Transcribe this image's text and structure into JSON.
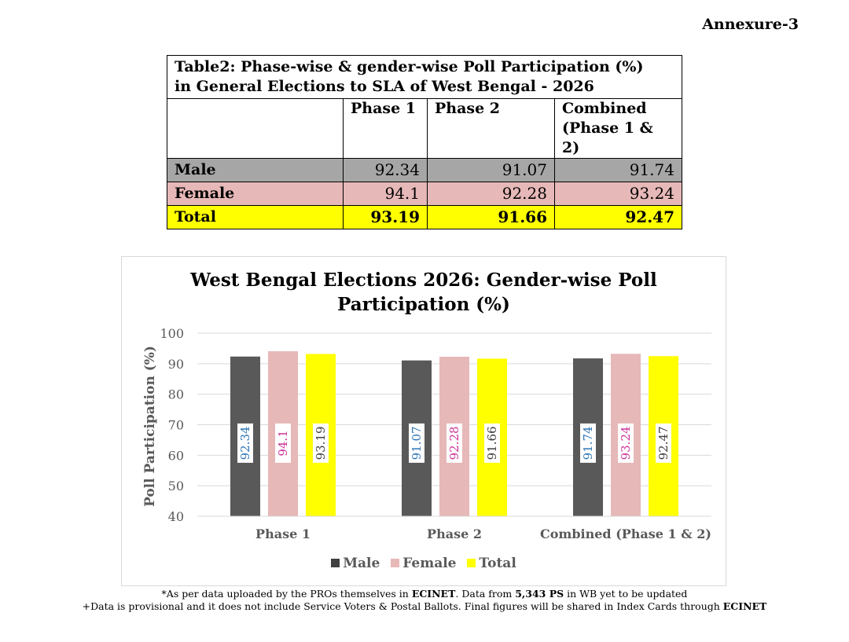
{
  "annexure": "Annexure-3",
  "table": {
    "caption_line1": "Table2: Phase-wise & gender-wise Poll Participation (%)",
    "caption_line2": "in General Elections to SLA of West Bengal - 2026",
    "headers": [
      "",
      "Phase 1",
      "Phase 2",
      "Combined (Phase 1 & 2)"
    ],
    "rows": [
      {
        "label": "Male",
        "values": [
          "92.34",
          "91.07",
          "91.74"
        ]
      },
      {
        "label": "Female",
        "values": [
          "94.1",
          "92.28",
          "93.24"
        ]
      },
      {
        "label": "Total",
        "values": [
          "93.19",
          "91.66",
          "92.47"
        ]
      }
    ],
    "row_colors": {
      "male": "#a6a6a6",
      "female": "#e6b8b7",
      "total": "#ffff00"
    }
  },
  "chart_data": {
    "type": "bar",
    "title_line1": "West Bengal Elections 2026: Gender-wise Poll",
    "title_line2": "Participation (%)",
    "ylabel": "Poll Participation (%)",
    "xlabel": "",
    "categories": [
      "Phase 1",
      "Phase 2",
      "Combined (Phase 1 & 2)"
    ],
    "ylim": [
      40,
      100
    ],
    "yticks": [
      40,
      50,
      60,
      70,
      80,
      90,
      100
    ],
    "grid": true,
    "legend_position": "bottom",
    "series": [
      {
        "name": "Male",
        "color": "#595959",
        "label_color": "#2e75b6",
        "values": [
          92.34,
          91.07,
          91.74
        ]
      },
      {
        "name": "Female",
        "color": "#e6b8b7",
        "label_color": "#cc3399",
        "values": [
          94.1,
          92.28,
          93.24
        ]
      },
      {
        "name": "Total",
        "color": "#ffff00",
        "label_color": "#404040",
        "values": [
          93.19,
          91.66,
          92.47
        ]
      }
    ]
  },
  "footnotes": {
    "line1_a": "*As per data uploaded by the PROs themselves in ",
    "line1_b": "ECINET",
    "line1_c": ". Data from ",
    "line1_d": "5,343 PS",
    "line1_e": " in WB yet to be updated",
    "line2_a": "+Data is provisional and it does not include Service Voters & Postal Ballots. Final figures will be shared in Index Cards through ",
    "line2_b": "ECINET"
  }
}
